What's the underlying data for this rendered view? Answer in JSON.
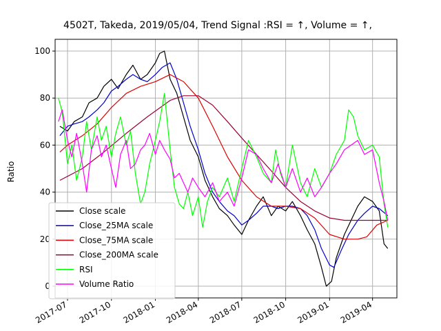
{
  "chart_data": {
    "type": "line",
    "title": "4502T, Takeda, 2019/05/04, Trend Signal :RSI = ↑, Volume = ↑,",
    "xlabel": "",
    "ylabel": "Ratio",
    "xlim": [
      "2017-06-05",
      "2019-05-22"
    ],
    "ylim": [
      -5,
      105
    ],
    "x_ticks": [
      "2017-07",
      "2017-10",
      "2018-01",
      "2018-04",
      "2018-07",
      "2018-10",
      "2019-01",
      "2019-04"
    ],
    "y_ticks": [
      0,
      20,
      40,
      60,
      80,
      100
    ],
    "grid": true,
    "legend_position": "lower-left",
    "series": [
      {
        "name": "Close scale",
        "color": "#000000",
        "points": [
          [
            "2017-06-15",
            68
          ],
          [
            "2017-07-01",
            66
          ],
          [
            "2017-07-15",
            70
          ],
          [
            "2017-08-01",
            72
          ],
          [
            "2017-08-15",
            78
          ],
          [
            "2017-09-01",
            80
          ],
          [
            "2017-09-15",
            85
          ],
          [
            "2017-10-01",
            88
          ],
          [
            "2017-10-15",
            84
          ],
          [
            "2017-11-01",
            90
          ],
          [
            "2017-11-15",
            94
          ],
          [
            "2017-12-01",
            88
          ],
          [
            "2017-12-15",
            90
          ],
          [
            "2018-01-01",
            95
          ],
          [
            "2018-01-10",
            99
          ],
          [
            "2018-01-20",
            100
          ],
          [
            "2018-02-01",
            88
          ],
          [
            "2018-02-15",
            82
          ],
          [
            "2018-03-01",
            72
          ],
          [
            "2018-03-15",
            62
          ],
          [
            "2018-04-01",
            55
          ],
          [
            "2018-04-15",
            45
          ],
          [
            "2018-05-01",
            38
          ],
          [
            "2018-05-15",
            33
          ],
          [
            "2018-06-01",
            30
          ],
          [
            "2018-06-15",
            26
          ],
          [
            "2018-07-01",
            22
          ],
          [
            "2018-07-15",
            28
          ],
          [
            "2018-08-01",
            34
          ],
          [
            "2018-08-15",
            38
          ],
          [
            "2018-09-01",
            30
          ],
          [
            "2018-09-15",
            34
          ],
          [
            "2018-10-01",
            32
          ],
          [
            "2018-10-15",
            36
          ],
          [
            "2018-11-01",
            30
          ],
          [
            "2018-11-15",
            24
          ],
          [
            "2018-12-01",
            18
          ],
          [
            "2018-12-15",
            8
          ],
          [
            "2018-12-25",
            0
          ],
          [
            "2019-01-05",
            2
          ],
          [
            "2019-01-15",
            12
          ],
          [
            "2019-02-01",
            22
          ],
          [
            "2019-02-15",
            28
          ],
          [
            "2019-03-01",
            34
          ],
          [
            "2019-03-15",
            38
          ],
          [
            "2019-04-01",
            36
          ],
          [
            "2019-04-15",
            32
          ],
          [
            "2019-04-25",
            18
          ],
          [
            "2019-05-03",
            16
          ]
        ]
      },
      {
        "name": "Close_25MA scale",
        "color": "#0000cc",
        "points": [
          [
            "2017-06-15",
            64
          ],
          [
            "2017-07-01",
            68
          ],
          [
            "2017-07-15",
            69
          ],
          [
            "2017-08-01",
            70
          ],
          [
            "2017-08-15",
            72
          ],
          [
            "2017-09-01",
            75
          ],
          [
            "2017-09-15",
            78
          ],
          [
            "2017-10-01",
            83
          ],
          [
            "2017-10-15",
            85
          ],
          [
            "2017-11-01",
            88
          ],
          [
            "2017-11-15",
            90
          ],
          [
            "2017-12-01",
            88
          ],
          [
            "2017-12-15",
            87
          ],
          [
            "2018-01-01",
            90
          ],
          [
            "2018-01-15",
            93
          ],
          [
            "2018-02-01",
            95
          ],
          [
            "2018-02-15",
            88
          ],
          [
            "2018-03-01",
            78
          ],
          [
            "2018-03-15",
            68
          ],
          [
            "2018-04-01",
            58
          ],
          [
            "2018-04-15",
            48
          ],
          [
            "2018-05-01",
            40
          ],
          [
            "2018-05-15",
            36
          ],
          [
            "2018-06-01",
            32
          ],
          [
            "2018-06-15",
            30
          ],
          [
            "2018-07-01",
            26
          ],
          [
            "2018-07-15",
            28
          ],
          [
            "2018-08-01",
            31
          ],
          [
            "2018-08-15",
            34
          ],
          [
            "2018-09-01",
            34
          ],
          [
            "2018-09-15",
            33
          ],
          [
            "2018-10-01",
            34
          ],
          [
            "2018-10-15",
            34
          ],
          [
            "2018-11-01",
            33
          ],
          [
            "2018-11-15",
            30
          ],
          [
            "2018-12-01",
            24
          ],
          [
            "2018-12-15",
            16
          ],
          [
            "2019-01-01",
            9
          ],
          [
            "2019-01-10",
            8
          ],
          [
            "2019-01-25",
            15
          ],
          [
            "2019-02-10",
            22
          ],
          [
            "2019-03-01",
            28
          ],
          [
            "2019-03-15",
            31
          ],
          [
            "2019-04-01",
            34
          ],
          [
            "2019-04-15",
            33
          ],
          [
            "2019-05-03",
            30
          ]
        ]
      },
      {
        "name": "Close_75MA scale",
        "color": "#dd0000",
        "points": [
          [
            "2017-06-15",
            57
          ],
          [
            "2017-07-01",
            60
          ],
          [
            "2017-08-01",
            64
          ],
          [
            "2017-09-01",
            69
          ],
          [
            "2017-10-01",
            76
          ],
          [
            "2017-11-01",
            82
          ],
          [
            "2017-12-01",
            85
          ],
          [
            "2018-01-01",
            87
          ],
          [
            "2018-02-01",
            90
          ],
          [
            "2018-03-01",
            87
          ],
          [
            "2018-04-01",
            80
          ],
          [
            "2018-05-01",
            68
          ],
          [
            "2018-06-01",
            55
          ],
          [
            "2018-07-01",
            45
          ],
          [
            "2018-08-01",
            38
          ],
          [
            "2018-09-01",
            34
          ],
          [
            "2018-10-01",
            34
          ],
          [
            "2018-11-01",
            33
          ],
          [
            "2018-12-01",
            29
          ],
          [
            "2019-01-01",
            22
          ],
          [
            "2019-02-01",
            20
          ],
          [
            "2019-03-01",
            20
          ],
          [
            "2019-03-20",
            21
          ],
          [
            "2019-04-10",
            26
          ],
          [
            "2019-05-03",
            28
          ]
        ]
      },
      {
        "name": "Close_200MA scale",
        "color": "#990033",
        "points": [
          [
            "2017-06-15",
            45
          ],
          [
            "2017-08-01",
            50
          ],
          [
            "2017-09-15",
            57
          ],
          [
            "2017-11-01",
            65
          ],
          [
            "2017-12-15",
            72
          ],
          [
            "2018-02-01",
            79
          ],
          [
            "2018-03-01",
            81
          ],
          [
            "2018-04-01",
            81
          ],
          [
            "2018-05-01",
            77
          ],
          [
            "2018-06-01",
            70
          ],
          [
            "2018-07-01",
            63
          ],
          [
            "2018-08-01",
            56
          ],
          [
            "2018-09-01",
            49
          ],
          [
            "2018-10-01",
            42
          ],
          [
            "2018-11-01",
            36
          ],
          [
            "2018-12-01",
            32
          ],
          [
            "2019-01-01",
            29
          ],
          [
            "2019-02-01",
            28
          ],
          [
            "2019-03-01",
            28
          ],
          [
            "2019-04-01",
            28
          ],
          [
            "2019-05-03",
            28
          ]
        ]
      },
      {
        "name": "RSI",
        "color": "#00ff00",
        "points": [
          [
            "2017-06-12",
            80
          ],
          [
            "2017-06-20",
            74
          ],
          [
            "2017-07-01",
            52
          ],
          [
            "2017-07-10",
            60
          ],
          [
            "2017-07-20",
            45
          ],
          [
            "2017-08-01",
            55
          ],
          [
            "2017-08-10",
            70
          ],
          [
            "2017-08-20",
            58
          ],
          [
            "2017-09-01",
            72
          ],
          [
            "2017-09-10",
            62
          ],
          [
            "2017-09-20",
            68
          ],
          [
            "2017-10-01",
            55
          ],
          [
            "2017-10-10",
            65
          ],
          [
            "2017-10-20",
            72
          ],
          [
            "2017-11-01",
            60
          ],
          [
            "2017-11-10",
            66
          ],
          [
            "2017-11-20",
            48
          ],
          [
            "2017-12-01",
            35
          ],
          [
            "2017-12-10",
            40
          ],
          [
            "2017-12-20",
            52
          ],
          [
            "2018-01-01",
            62
          ],
          [
            "2018-01-10",
            70
          ],
          [
            "2018-01-20",
            82
          ],
          [
            "2018-02-01",
            58
          ],
          [
            "2018-02-10",
            42
          ],
          [
            "2018-02-20",
            35
          ],
          [
            "2018-03-01",
            33
          ],
          [
            "2018-03-10",
            40
          ],
          [
            "2018-03-20",
            30
          ],
          [
            "2018-04-01",
            38
          ],
          [
            "2018-04-10",
            25
          ],
          [
            "2018-04-20",
            36
          ],
          [
            "2018-05-01",
            42
          ],
          [
            "2018-05-15",
            38
          ],
          [
            "2018-06-01",
            46
          ],
          [
            "2018-06-15",
            36
          ],
          [
            "2018-07-01",
            50
          ],
          [
            "2018-07-15",
            62
          ],
          [
            "2018-08-01",
            55
          ],
          [
            "2018-08-15",
            48
          ],
          [
            "2018-09-01",
            44
          ],
          [
            "2018-09-10",
            58
          ],
          [
            "2018-09-20",
            48
          ],
          [
            "2018-10-01",
            42
          ],
          [
            "2018-10-15",
            60
          ],
          [
            "2018-11-01",
            44
          ],
          [
            "2018-11-15",
            38
          ],
          [
            "2018-12-01",
            50
          ],
          [
            "2018-12-15",
            42
          ],
          [
            "2019-01-01",
            48
          ],
          [
            "2019-01-15",
            56
          ],
          [
            "2019-02-01",
            62
          ],
          [
            "2019-02-10",
            75
          ],
          [
            "2019-02-20",
            72
          ],
          [
            "2019-03-01",
            64
          ],
          [
            "2019-03-15",
            58
          ],
          [
            "2019-04-01",
            60
          ],
          [
            "2019-04-15",
            55
          ],
          [
            "2019-04-25",
            35
          ],
          [
            "2019-05-03",
            25
          ]
        ]
      },
      {
        "name": "Volume Ratio",
        "color": "#ff00ff",
        "points": [
          [
            "2017-06-12",
            70
          ],
          [
            "2017-06-20",
            75
          ],
          [
            "2017-07-01",
            62
          ],
          [
            "2017-07-10",
            55
          ],
          [
            "2017-07-20",
            65
          ],
          [
            "2017-08-01",
            52
          ],
          [
            "2017-08-10",
            40
          ],
          [
            "2017-08-20",
            58
          ],
          [
            "2017-09-01",
            64
          ],
          [
            "2017-09-10",
            55
          ],
          [
            "2017-09-20",
            60
          ],
          [
            "2017-10-01",
            50
          ],
          [
            "2017-10-10",
            42
          ],
          [
            "2017-10-20",
            56
          ],
          [
            "2017-11-01",
            62
          ],
          [
            "2017-11-10",
            50
          ],
          [
            "2017-11-20",
            52
          ],
          [
            "2017-12-01",
            58
          ],
          [
            "2017-12-10",
            60
          ],
          [
            "2017-12-20",
            65
          ],
          [
            "2018-01-01",
            56
          ],
          [
            "2018-01-10",
            62
          ],
          [
            "2018-01-20",
            58
          ],
          [
            "2018-02-01",
            54
          ],
          [
            "2018-02-10",
            46
          ],
          [
            "2018-02-20",
            48
          ],
          [
            "2018-03-01",
            44
          ],
          [
            "2018-03-10",
            40
          ],
          [
            "2018-03-20",
            46
          ],
          [
            "2018-04-01",
            42
          ],
          [
            "2018-04-15",
            38
          ],
          [
            "2018-05-01",
            44
          ],
          [
            "2018-05-15",
            36
          ],
          [
            "2018-06-01",
            40
          ],
          [
            "2018-06-15",
            34
          ],
          [
            "2018-07-01",
            46
          ],
          [
            "2018-07-15",
            58
          ],
          [
            "2018-08-01",
            56
          ],
          [
            "2018-08-15",
            50
          ],
          [
            "2018-09-01",
            44
          ],
          [
            "2018-09-15",
            52
          ],
          [
            "2018-10-01",
            42
          ],
          [
            "2018-10-15",
            50
          ],
          [
            "2018-11-01",
            40
          ],
          [
            "2018-11-15",
            46
          ],
          [
            "2018-12-01",
            38
          ],
          [
            "2018-12-15",
            42
          ],
          [
            "2019-01-01",
            48
          ],
          [
            "2019-01-15",
            52
          ],
          [
            "2019-02-01",
            58
          ],
          [
            "2019-02-15",
            60
          ],
          [
            "2019-03-01",
            62
          ],
          [
            "2019-03-15",
            56
          ],
          [
            "2019-04-01",
            58
          ],
          [
            "2019-04-15",
            44
          ],
          [
            "2019-04-25",
            36
          ],
          [
            "2019-05-03",
            28
          ]
        ]
      }
    ]
  }
}
